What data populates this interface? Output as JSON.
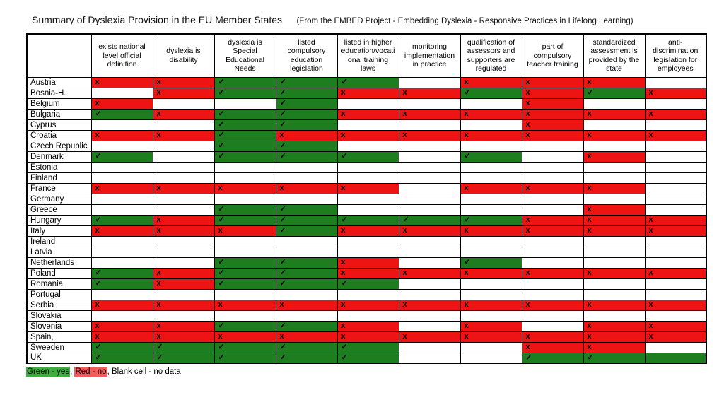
{
  "title": "Summary of Dyslexia Provision in the EU Member States",
  "subtitle": "(From the EMBED Project - Embedding Dyslexia - Responsive Practices in Lifelong Learning)",
  "legend": {
    "green_label": "Green - yes",
    "separator": ", ",
    "red_label": "Red - no",
    "rest": ", Blank cell - no data"
  },
  "marks": {
    "yes": "✓",
    "no": "x"
  },
  "colors": {
    "green": "#1e7d1e",
    "red": "#ee1414",
    "legend_green": "#3fae3f",
    "legend_red": "#f75b5b",
    "border": "#000000"
  },
  "chart_data": {
    "type": "table",
    "cell_encoding": {
      "y": "green cell with check = yes",
      "n": "red cell with x = no",
      "g": "green cell, no mark",
      "": "blank cell = no data"
    },
    "columns": [
      "exists national level official definition",
      "dyslexia is disability",
      "dyslexia is Special Educational Needs",
      "listed compulsory education legislation",
      "listed in higher education/vocati onal training laws",
      "monitoring implementation in practice",
      "qualification of assessors and supporters are regulated",
      "part of compulsory teacher training",
      "standardized assessment is provided by the state",
      "anti-discrimination legislation for employees"
    ],
    "rows": [
      {
        "country": "Austria",
        "cells": [
          "n",
          "n",
          "y",
          "y",
          "y",
          "",
          "n",
          "n",
          "n",
          ""
        ]
      },
      {
        "country": "Bosnia-H.",
        "cells": [
          "",
          "n",
          "y",
          "y",
          "n",
          "n",
          "y",
          "n",
          "y",
          "n"
        ]
      },
      {
        "country": "Belgium",
        "cells": [
          "n",
          "",
          "",
          "y",
          "",
          "",
          "",
          "n",
          "",
          ""
        ]
      },
      {
        "country": "Bulgaria",
        "cells": [
          "y",
          "n",
          "y",
          "y",
          "n",
          "n",
          "n",
          "n",
          "n",
          "n"
        ]
      },
      {
        "country": "Cyprus",
        "cells": [
          "",
          "",
          "y",
          "y",
          "",
          "",
          "",
          "n",
          "",
          ""
        ]
      },
      {
        "country": "Croatia",
        "cells": [
          "n",
          "n",
          "y",
          "n",
          "n",
          "n",
          "n",
          "n",
          "n",
          "n"
        ]
      },
      {
        "country": "Czech Republic",
        "cells": [
          "",
          "",
          "y",
          "y",
          "",
          "",
          "",
          "",
          "",
          ""
        ]
      },
      {
        "country": "Denmark",
        "cells": [
          "y",
          "",
          "y",
          "y",
          "y",
          "",
          "y",
          "",
          "n",
          ""
        ]
      },
      {
        "country": "Estonia",
        "cells": [
          "",
          "",
          "",
          "",
          "",
          "",
          "",
          "",
          "",
          ""
        ]
      },
      {
        "country": "Finland",
        "cells": [
          "",
          "",
          "",
          "",
          "",
          "",
          "",
          "",
          "",
          ""
        ]
      },
      {
        "country": "France",
        "cells": [
          "n",
          "n",
          "n",
          "n",
          "n",
          "",
          "n",
          "n",
          "n",
          ""
        ]
      },
      {
        "country": "Germany",
        "cells": [
          "",
          "",
          "",
          "",
          "",
          "",
          "",
          "",
          "",
          ""
        ]
      },
      {
        "country": "Greece",
        "cells": [
          "",
          "",
          "y",
          "y",
          "",
          "",
          "",
          "",
          "n",
          ""
        ]
      },
      {
        "country": "Hungary",
        "cells": [
          "y",
          "n",
          "y",
          "y",
          "y",
          "y",
          "y",
          "n",
          "n",
          "n"
        ]
      },
      {
        "country": "Italy",
        "cells": [
          "n",
          "n",
          "n",
          "y",
          "n",
          "n",
          "n",
          "n",
          "n",
          "n"
        ]
      },
      {
        "country": "Ireland",
        "cells": [
          "",
          "",
          "",
          "",
          "",
          "",
          "",
          "",
          "",
          ""
        ]
      },
      {
        "country": "Latvia",
        "cells": [
          "",
          "",
          "",
          "",
          "",
          "",
          "",
          "",
          "",
          ""
        ]
      },
      {
        "country": "Netherlands",
        "cells": [
          "",
          "",
          "y",
          "y",
          "n",
          "",
          "y",
          "",
          "",
          ""
        ]
      },
      {
        "country": "Poland",
        "cells": [
          "y",
          "n",
          "y",
          "y",
          "n",
          "n",
          "n",
          "n",
          "n",
          "n"
        ]
      },
      {
        "country": "Romania",
        "cells": [
          "y",
          "n",
          "y",
          "y",
          "y",
          "",
          "",
          "",
          "",
          ""
        ]
      },
      {
        "country": "Portugal",
        "cells": [
          "",
          "",
          "",
          "",
          "",
          "",
          "",
          "",
          "",
          ""
        ]
      },
      {
        "country": "Serbia",
        "cells": [
          "n",
          "n",
          "n",
          "n",
          "n",
          "n",
          "n",
          "n",
          "n",
          "n"
        ]
      },
      {
        "country": "Slovakia",
        "cells": [
          "",
          "",
          "",
          "",
          "",
          "",
          "",
          "",
          "",
          ""
        ]
      },
      {
        "country": "Slovenia",
        "cells": [
          "n",
          "n",
          "y",
          "y",
          "n",
          "",
          "n",
          "",
          "n",
          "n"
        ]
      },
      {
        "country": "Spain,",
        "cells": [
          "n",
          "n",
          "n",
          "n",
          "n",
          "n",
          "n",
          "n",
          "n",
          "n"
        ]
      },
      {
        "country": "Sweeden",
        "cells": [
          "y",
          "y",
          "y",
          "y",
          "y",
          "",
          "",
          "n",
          "n",
          ""
        ]
      },
      {
        "country": "UK",
        "cells": [
          "y",
          "y",
          "y",
          "y",
          "y",
          "",
          "",
          "y",
          "y",
          "g"
        ]
      }
    ]
  }
}
